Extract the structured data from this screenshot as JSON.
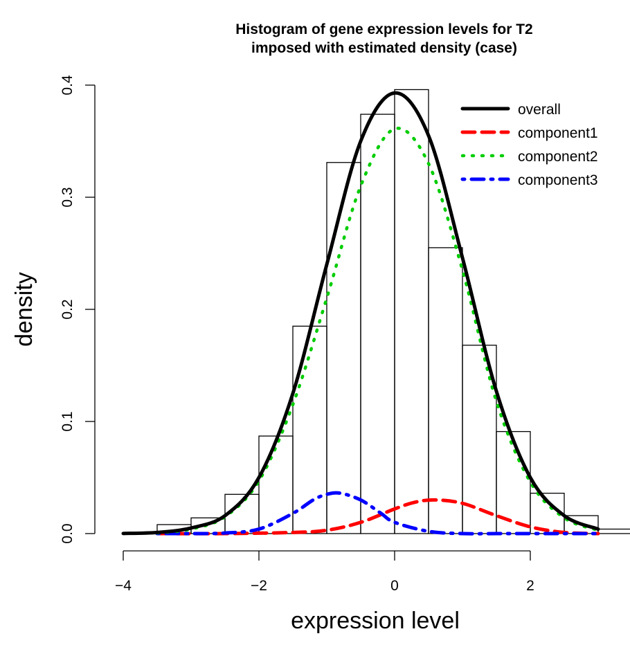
{
  "chart_data": {
    "type": "histogram",
    "title": "Histogram of gene expression levels for T2",
    "subtitle": "imposed with estimated density (case)",
    "xlabel": "expression level",
    "ylabel": "density",
    "xlim": [
      -4,
      3.5
    ],
    "ylim": [
      0,
      0.4
    ],
    "x_ticks": [
      -4,
      -2,
      0,
      2
    ],
    "x_tick_labels": [
      "−4",
      "−2",
      "0",
      "2"
    ],
    "y_ticks": [
      0.0,
      0.1,
      0.2,
      0.3,
      0.4
    ],
    "y_tick_labels": [
      "0.0",
      "0.1",
      "0.2",
      "0.3",
      "0.4"
    ],
    "grid": false,
    "legend_position": "top-right",
    "bins": [
      {
        "x0": -4.0,
        "x1": -3.5,
        "density": 0.001
      },
      {
        "x0": -3.5,
        "x1": -3.0,
        "density": 0.008
      },
      {
        "x0": -3.0,
        "x1": -2.5,
        "density": 0.014
      },
      {
        "x0": -2.5,
        "x1": -2.0,
        "density": 0.035
      },
      {
        "x0": -2.0,
        "x1": -1.5,
        "density": 0.087
      },
      {
        "x0": -1.5,
        "x1": -1.0,
        "density": 0.185
      },
      {
        "x0": -1.0,
        "x1": -0.5,
        "density": 0.331
      },
      {
        "x0": -0.5,
        "x1": 0.0,
        "density": 0.374
      },
      {
        "x0": 0.0,
        "x1": 0.5,
        "density": 0.396
      },
      {
        "x0": 0.5,
        "x1": 1.0,
        "density": 0.255
      },
      {
        "x0": 1.0,
        "x1": 1.5,
        "density": 0.168
      },
      {
        "x0": 1.5,
        "x1": 2.0,
        "density": 0.091
      },
      {
        "x0": 2.0,
        "x1": 2.5,
        "density": 0.036
      },
      {
        "x0": 2.5,
        "x1": 3.0,
        "density": 0.016
      },
      {
        "x0": 3.0,
        "x1": 3.5,
        "density": 0.004
      }
    ],
    "series": [
      {
        "name": "overall",
        "color": "#000000",
        "dash": "solid",
        "x": [
          -4.0,
          -3.5,
          -3.0,
          -2.5,
          -2.0,
          -1.5,
          -1.0,
          -0.5,
          0.0,
          0.5,
          1.0,
          1.5,
          2.0,
          2.5,
          3.0
        ],
        "y": [
          0.0001,
          0.001,
          0.005,
          0.016,
          0.05,
          0.125,
          0.24,
          0.35,
          0.393,
          0.355,
          0.246,
          0.127,
          0.05,
          0.016,
          0.004
        ]
      },
      {
        "name": "component1",
        "color": "#ff0000",
        "dash": "dashed",
        "x": [
          -3.5,
          -2.5,
          -1.5,
          -1.0,
          -0.5,
          0.0,
          0.3,
          0.6,
          1.0,
          1.5,
          2.0,
          2.5,
          3.0
        ],
        "y": [
          0.0,
          0.0,
          0.001,
          0.003,
          0.01,
          0.022,
          0.028,
          0.03,
          0.027,
          0.016,
          0.006,
          0.001,
          0.0
        ]
      },
      {
        "name": "component2",
        "color": "#00cd00",
        "dash": "dotted",
        "x": [
          -3.5,
          -3.0,
          -2.5,
          -2.0,
          -1.5,
          -1.0,
          -0.5,
          0.0,
          0.5,
          1.0,
          1.5,
          2.0,
          2.5,
          3.0
        ],
        "y": [
          0.0005,
          0.004,
          0.015,
          0.047,
          0.115,
          0.21,
          0.31,
          0.361,
          0.33,
          0.235,
          0.118,
          0.046,
          0.014,
          0.003
        ]
      },
      {
        "name": "component3",
        "color": "#0000ff",
        "dash": "dotdash",
        "x": [
          -3.5,
          -3.0,
          -2.5,
          -2.0,
          -1.5,
          -1.2,
          -1.0,
          -0.8,
          -0.5,
          -0.2,
          0.0,
          0.5,
          1.0,
          1.5,
          2.0,
          3.0
        ],
        "y": [
          0.0,
          0.0,
          0.0005,
          0.004,
          0.018,
          0.03,
          0.035,
          0.036,
          0.03,
          0.018,
          0.01,
          0.002,
          0.0,
          0.0,
          0.0,
          0.0
        ]
      }
    ]
  }
}
